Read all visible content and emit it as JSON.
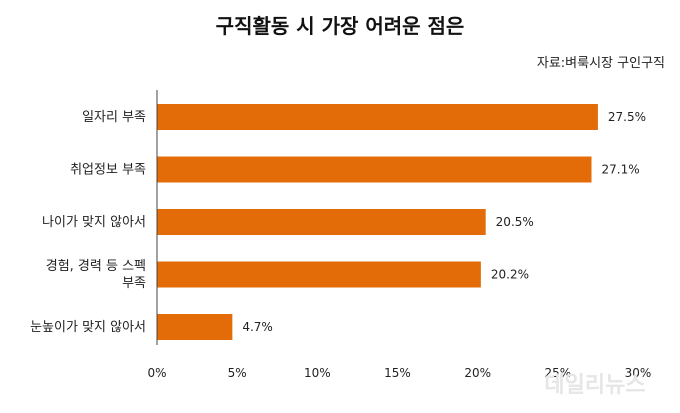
{
  "chart_data": {
    "type": "bar",
    "orientation": "horizontal",
    "title": "구직활동 시 가장 어려운 점은",
    "source": "자료:벼룩시장 구인구직",
    "categories": [
      [
        "일자리 부족"
      ],
      [
        "취업정보 부족"
      ],
      [
        "나이가 맞지 않아서"
      ],
      [
        "경험, 경력 등 스펙",
        "부족"
      ],
      [
        "눈높이가 맞지 않아서"
      ]
    ],
    "values": [
      27.5,
      27.1,
      20.5,
      20.2,
      4.7
    ],
    "value_labels": [
      "27.5%",
      "27.1%",
      "20.5%",
      "20.2%",
      "4.7%"
    ],
    "x_ticks": [
      0,
      5,
      10,
      15,
      20,
      25,
      30
    ],
    "x_tick_labels": [
      "0%",
      "5%",
      "10%",
      "15%",
      "20%",
      "25%",
      "30%"
    ],
    "xlim": [
      0,
      30
    ],
    "grid": false,
    "bar_color": "#e36c09"
  },
  "watermark": "데일리뉴스"
}
